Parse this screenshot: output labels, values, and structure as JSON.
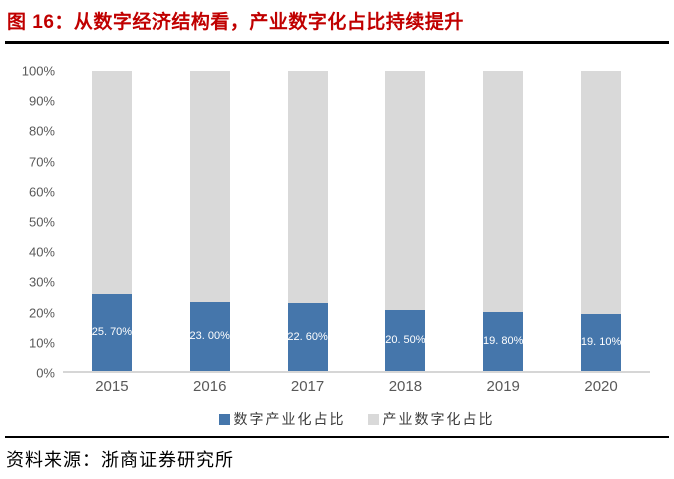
{
  "figure": {
    "title": "图 16：从数字经济结构看，产业数字化占比持续提升",
    "source": "资料来源：浙商证券研究所"
  },
  "colors": {
    "title_red": "#c00000",
    "bar_blue": "#4576ab",
    "bar_gray": "#d9d9d9",
    "axis_text": "#595959",
    "axis_line": "#d6d6d6",
    "rule_black": "#000000",
    "bar_label_white": "#ffffff"
  },
  "chart_data": {
    "type": "bar",
    "stacked": true,
    "grid": false,
    "legend_position": "bottom",
    "categories": [
      "2015",
      "2016",
      "2017",
      "2018",
      "2019",
      "2020"
    ],
    "series": [
      {
        "name": "数字产业化占比",
        "color": "#4576ab",
        "values": [
          25.7,
          23.0,
          22.6,
          20.5,
          19.8,
          19.1
        ],
        "labels": [
          "25. 70%",
          "23. 00%",
          "22. 60%",
          "20. 50%",
          "19. 80%",
          "19. 10%"
        ]
      },
      {
        "name": "产业数字化占比",
        "color": "#d9d9d9",
        "values": [
          74.3,
          77.0,
          77.4,
          79.5,
          80.2,
          80.9
        ],
        "labels": []
      }
    ],
    "y_axis": {
      "min": 0,
      "max": 100,
      "ticks": [
        "100%",
        "90%",
        "80%",
        "70%",
        "60%",
        "50%",
        "40%",
        "30%",
        "20%",
        "10%",
        "0%"
      ]
    }
  }
}
